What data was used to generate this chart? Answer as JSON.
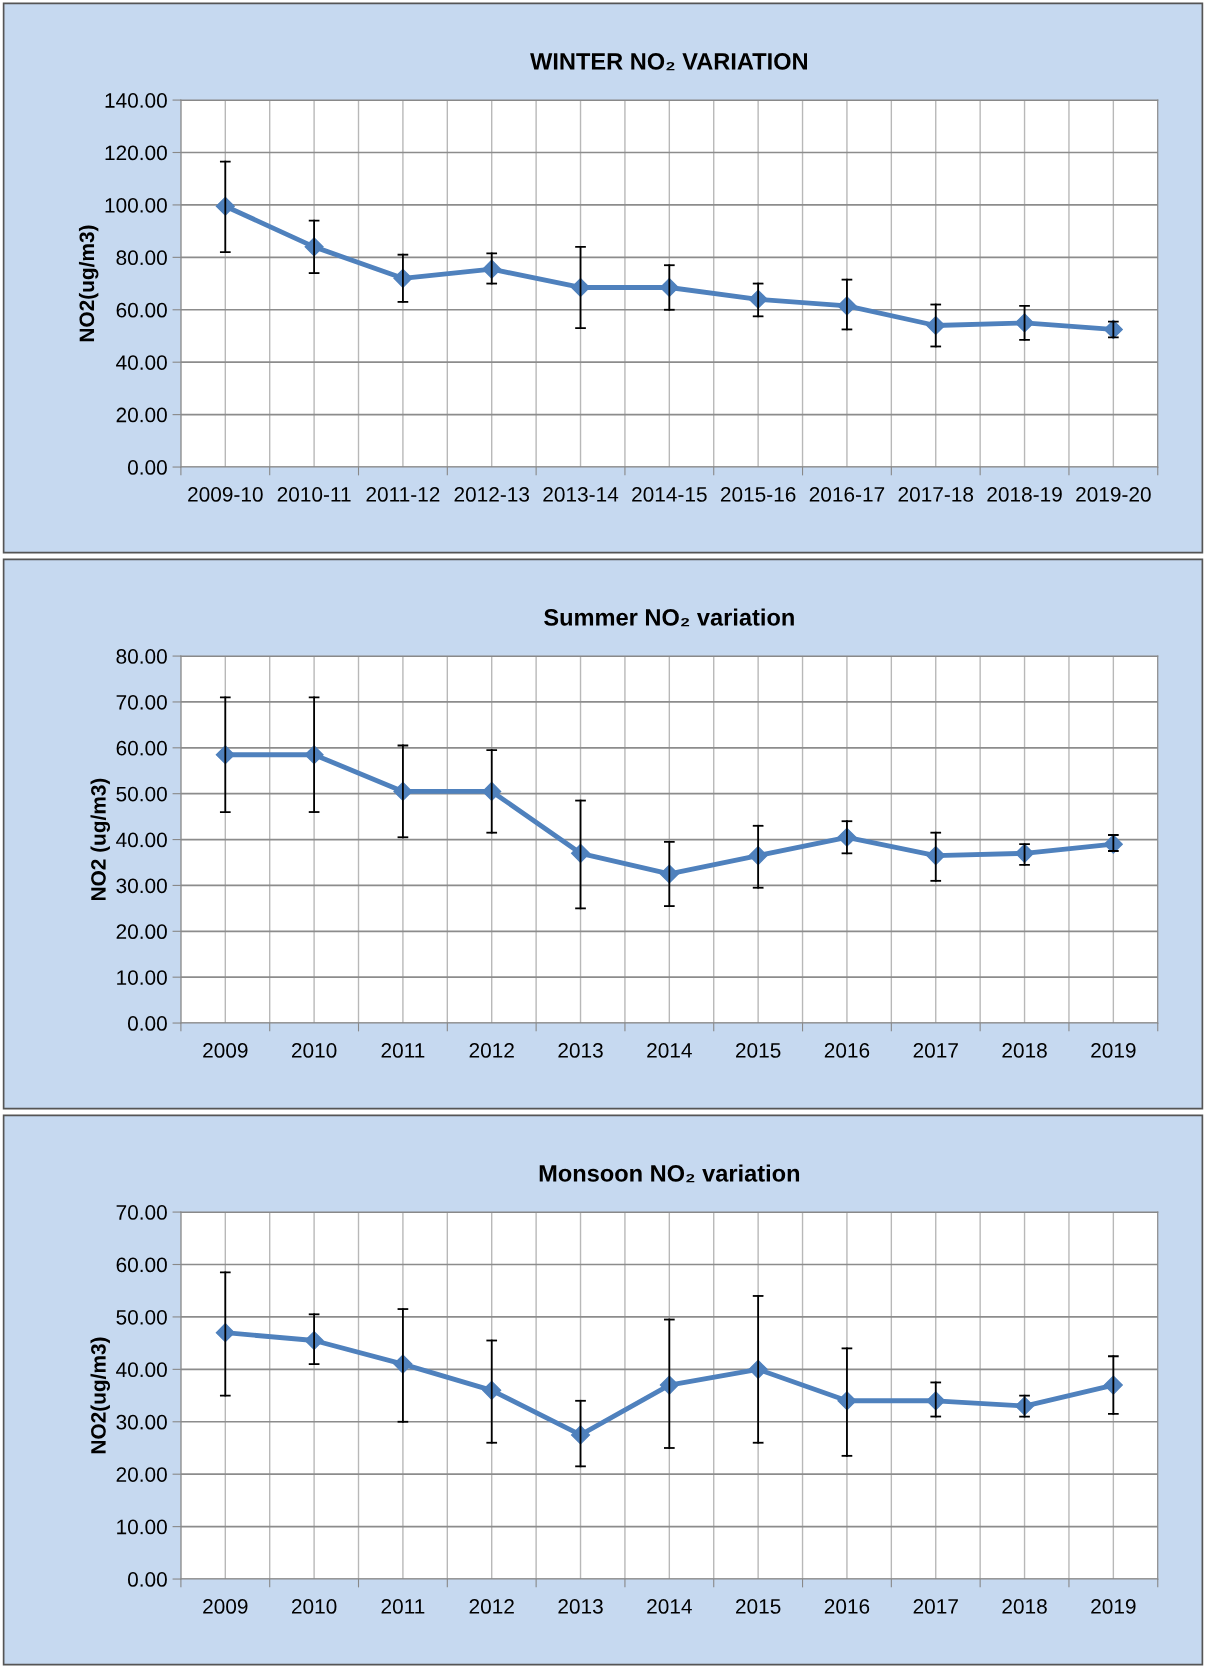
{
  "chart_data": [
    {
      "type": "line",
      "title": "WINTER NO₂ VARIATION",
      "ylabel": "NO2(ug/m3)",
      "categories": [
        "2009-10",
        "2010-11",
        "2011-12",
        "2012-13",
        "2013-14",
        "2014-15",
        "2015-16",
        "2016-17",
        "2017-18",
        "2018-19",
        "2019-20"
      ],
      "series": [
        {
          "color": "#4f81bd",
          "values": [
            99.5,
            84,
            72,
            75.5,
            68.5,
            68.5,
            64,
            61.5,
            54,
            55,
            52.5
          ],
          "errors": [
            [
              82,
              116.5
            ],
            [
              74,
              94
            ],
            [
              63,
              81
            ],
            [
              70,
              81.5
            ],
            [
              53,
              84
            ],
            [
              60,
              77
            ],
            [
              57.5,
              70
            ],
            [
              52.5,
              71.5
            ],
            [
              46,
              62
            ],
            [
              48.5,
              61.5
            ],
            [
              49.5,
              55.5
            ]
          ]
        }
      ],
      "ylim": [
        0,
        140
      ],
      "yticks": [
        {
          "value": 0,
          "label": "0.00"
        },
        {
          "value": 20,
          "label": "20.00"
        },
        {
          "value": 40,
          "label": "40.00"
        },
        {
          "value": 60,
          "label": "60.00"
        },
        {
          "value": 80,
          "label": "80.00"
        },
        {
          "value": 100,
          "label": "100.00"
        },
        {
          "value": 120,
          "label": "120.00"
        },
        {
          "value": 140,
          "label": "140.00"
        }
      ],
      "grid": true,
      "marker": "diamond",
      "line_style": "solid"
    },
    {
      "type": "line",
      "title": "Summer NO₂ variation",
      "ylabel": "NO2 (ug/m3)",
      "categories": [
        "2009",
        "2010",
        "2011",
        "2012",
        "2013",
        "2014",
        "2015",
        "2016",
        "2017",
        "2018",
        "2019"
      ],
      "series": [
        {
          "color": "#4f81bd",
          "values": [
            58.5,
            58.5,
            50.5,
            50.5,
            37,
            32.5,
            36.5,
            40.5,
            36.5,
            37,
            39
          ],
          "errors": [
            [
              46,
              71
            ],
            [
              46,
              71
            ],
            [
              40.5,
              60.5
            ],
            [
              41.5,
              59.5
            ],
            [
              25,
              48.5
            ],
            [
              25.5,
              39.5
            ],
            [
              29.5,
              43
            ],
            [
              37,
              44
            ],
            [
              31,
              41.5
            ],
            [
              34.5,
              39
            ],
            [
              37.5,
              41
            ]
          ]
        }
      ],
      "ylim": [
        0,
        80
      ],
      "yticks": [
        {
          "value": 0,
          "label": "0.00"
        },
        {
          "value": 10,
          "label": "10.00"
        },
        {
          "value": 20,
          "label": "20.00"
        },
        {
          "value": 30,
          "label": "30.00"
        },
        {
          "value": 40,
          "label": "40.00"
        },
        {
          "value": 50,
          "label": "50.00"
        },
        {
          "value": 60,
          "label": "60.00"
        },
        {
          "value": 70,
          "label": "70.00"
        },
        {
          "value": 80,
          "label": "80.00"
        }
      ],
      "grid": true,
      "marker": "diamond",
      "line_style": "solid"
    },
    {
      "type": "line",
      "title": "Monsoon NO₂ variation",
      "ylabel": "NO2(ug/m3)",
      "categories": [
        "2009",
        "2010",
        "2011",
        "2012",
        "2013",
        "2014",
        "2015",
        "2016",
        "2017",
        "2018",
        "2019"
      ],
      "series": [
        {
          "color": "#4f81bd",
          "values": [
            47,
            45.5,
            41,
            36,
            27.5,
            37,
            40,
            34,
            34,
            33,
            37
          ],
          "errors": [
            [
              35,
              58.5
            ],
            [
              41,
              50.5
            ],
            [
              30,
              51.5
            ],
            [
              26,
              45.5
            ],
            [
              21.5,
              34
            ],
            [
              25,
              49.5
            ],
            [
              26,
              54
            ],
            [
              23.5,
              44
            ],
            [
              31,
              37.5
            ],
            [
              31,
              35
            ],
            [
              31.5,
              42.5
            ]
          ]
        }
      ],
      "ylim": [
        0,
        70
      ],
      "yticks": [
        {
          "value": 0,
          "label": "0.00"
        },
        {
          "value": 10,
          "label": "10.00"
        },
        {
          "value": 20,
          "label": "20.00"
        },
        {
          "value": 30,
          "label": "30.00"
        },
        {
          "value": 40,
          "label": "40.00"
        },
        {
          "value": 50,
          "label": "50.00"
        },
        {
          "value": 60,
          "label": "60.00"
        },
        {
          "value": 70,
          "label": "70.00"
        }
      ],
      "grid": true,
      "marker": "diamond",
      "line_style": "solid"
    }
  ]
}
